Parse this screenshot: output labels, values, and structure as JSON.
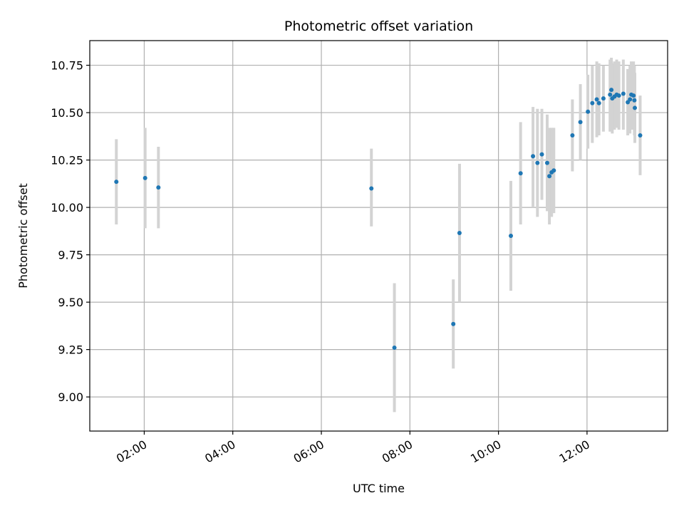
{
  "chart_data": {
    "type": "scatter",
    "title": "Photometric offset variation",
    "xlabel": "UTC time",
    "ylabel": "Photometric offset",
    "x_unit": "hours (UTC)",
    "xlim": [
      0.77,
      13.82
    ],
    "ylim": [
      8.82,
      10.88
    ],
    "x_ticks": [
      {
        "value": 2,
        "label": "02:00"
      },
      {
        "value": 4,
        "label": "04:00"
      },
      {
        "value": 6,
        "label": "06:00"
      },
      {
        "value": 8,
        "label": "08:00"
      },
      {
        "value": 10,
        "label": "10:00"
      },
      {
        "value": 12,
        "label": "12:00"
      }
    ],
    "y_ticks": [
      {
        "value": 9.0,
        "label": "9.00"
      },
      {
        "value": 9.25,
        "label": "9.25"
      },
      {
        "value": 9.5,
        "label": "9.50"
      },
      {
        "value": 9.75,
        "label": "9.75"
      },
      {
        "value": 10.0,
        "label": "10.00"
      },
      {
        "value": 10.25,
        "label": "10.25"
      },
      {
        "value": 10.5,
        "label": "10.50"
      },
      {
        "value": 10.75,
        "label": "10.75"
      }
    ],
    "grid": true,
    "marker_color": "#1f77b4",
    "errorbar_color": "#d3d3d3",
    "points": [
      {
        "x": 1.37,
        "y": 10.135,
        "lo": 9.91,
        "hi": 10.36
      },
      {
        "x": 2.02,
        "y": 10.155,
        "lo": 9.89,
        "hi": 10.42
      },
      {
        "x": 2.32,
        "y": 10.105,
        "lo": 9.89,
        "hi": 10.32
      },
      {
        "x": 7.13,
        "y": 10.1,
        "lo": 9.9,
        "hi": 10.31
      },
      {
        "x": 7.65,
        "y": 9.26,
        "lo": 8.92,
        "hi": 9.6
      },
      {
        "x": 8.98,
        "y": 9.385,
        "lo": 9.15,
        "hi": 9.62
      },
      {
        "x": 9.12,
        "y": 9.865,
        "lo": 9.5,
        "hi": 10.23
      },
      {
        "x": 10.28,
        "y": 9.85,
        "lo": 9.56,
        "hi": 10.14
      },
      {
        "x": 10.5,
        "y": 10.18,
        "lo": 9.91,
        "hi": 10.45
      },
      {
        "x": 10.78,
        "y": 10.27,
        "lo": 10.0,
        "hi": 10.53
      },
      {
        "x": 10.88,
        "y": 10.235,
        "lo": 9.95,
        "hi": 10.52
      },
      {
        "x": 10.98,
        "y": 10.28,
        "lo": 10.04,
        "hi": 10.52
      },
      {
        "x": 11.1,
        "y": 10.235,
        "lo": 9.98,
        "hi": 10.49
      },
      {
        "x": 11.15,
        "y": 10.165,
        "lo": 9.91,
        "hi": 10.42
      },
      {
        "x": 11.2,
        "y": 10.185,
        "lo": 9.95,
        "hi": 10.42
      },
      {
        "x": 11.25,
        "y": 10.195,
        "lo": 9.97,
        "hi": 10.42
      },
      {
        "x": 11.67,
        "y": 10.38,
        "lo": 10.19,
        "hi": 10.57
      },
      {
        "x": 11.85,
        "y": 10.45,
        "lo": 10.25,
        "hi": 10.65
      },
      {
        "x": 12.02,
        "y": 10.505,
        "lo": 10.31,
        "hi": 10.7
      },
      {
        "x": 12.12,
        "y": 10.55,
        "lo": 10.34,
        "hi": 10.75
      },
      {
        "x": 12.22,
        "y": 10.57,
        "lo": 10.37,
        "hi": 10.77
      },
      {
        "x": 12.27,
        "y": 10.55,
        "lo": 10.38,
        "hi": 10.76
      },
      {
        "x": 12.37,
        "y": 10.575,
        "lo": 10.4,
        "hi": 10.75
      },
      {
        "x": 12.52,
        "y": 10.595,
        "lo": 10.4,
        "hi": 10.78
      },
      {
        "x": 12.55,
        "y": 10.62,
        "lo": 10.43,
        "hi": 10.79
      },
      {
        "x": 12.57,
        "y": 10.575,
        "lo": 10.39,
        "hi": 10.76
      },
      {
        "x": 12.62,
        "y": 10.585,
        "lo": 10.41,
        "hi": 10.77
      },
      {
        "x": 12.67,
        "y": 10.595,
        "lo": 10.42,
        "hi": 10.78
      },
      {
        "x": 12.72,
        "y": 10.59,
        "lo": 10.41,
        "hi": 10.77
      },
      {
        "x": 12.82,
        "y": 10.6,
        "lo": 10.41,
        "hi": 10.78
      },
      {
        "x": 12.92,
        "y": 10.555,
        "lo": 10.38,
        "hi": 10.73
      },
      {
        "x": 12.97,
        "y": 10.57,
        "lo": 10.39,
        "hi": 10.75
      },
      {
        "x": 13.0,
        "y": 10.595,
        "lo": 10.41,
        "hi": 10.77
      },
      {
        "x": 13.05,
        "y": 10.59,
        "lo": 10.41,
        "hi": 10.77
      },
      {
        "x": 13.07,
        "y": 10.565,
        "lo": 10.38,
        "hi": 10.75
      },
      {
        "x": 13.08,
        "y": 10.525,
        "lo": 10.34,
        "hi": 10.71
      },
      {
        "x": 13.2,
        "y": 10.38,
        "lo": 10.17,
        "hi": 10.59
      }
    ]
  }
}
